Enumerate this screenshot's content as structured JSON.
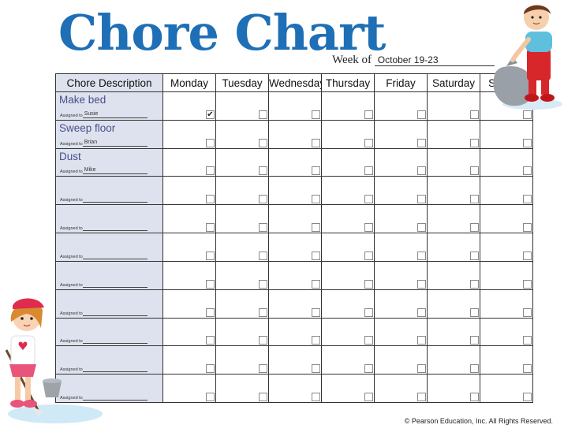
{
  "title": "Chore Chart",
  "week": {
    "label": "Week of",
    "value": "October 19-23"
  },
  "table": {
    "columns": [
      "Chore Description",
      "Monday",
      "Tuesday",
      "Wednesday",
      "Thursday",
      "Friday",
      "Saturday",
      "Sunday"
    ],
    "assigned_label": "Assigned to",
    "rows": [
      {
        "chore": "Make bed",
        "assigned": "Susie",
        "checks": [
          true,
          false,
          false,
          false,
          false,
          false,
          false
        ]
      },
      {
        "chore": "Sweep floor",
        "assigned": "Brian",
        "checks": [
          false,
          false,
          false,
          false,
          false,
          false,
          false
        ]
      },
      {
        "chore": "Dust",
        "assigned": "Mike",
        "checks": [
          false,
          false,
          false,
          false,
          false,
          false,
          false
        ]
      },
      {
        "chore": "",
        "assigned": "",
        "checks": [
          false,
          false,
          false,
          false,
          false,
          false,
          false
        ]
      },
      {
        "chore": "",
        "assigned": "",
        "checks": [
          false,
          false,
          false,
          false,
          false,
          false,
          false
        ]
      },
      {
        "chore": "",
        "assigned": "",
        "checks": [
          false,
          false,
          false,
          false,
          false,
          false,
          false
        ]
      },
      {
        "chore": "",
        "assigned": "",
        "checks": [
          false,
          false,
          false,
          false,
          false,
          false,
          false
        ]
      },
      {
        "chore": "",
        "assigned": "",
        "checks": [
          false,
          false,
          false,
          false,
          false,
          false,
          false
        ]
      },
      {
        "chore": "",
        "assigned": "",
        "checks": [
          false,
          false,
          false,
          false,
          false,
          false,
          false
        ]
      },
      {
        "chore": "",
        "assigned": "",
        "checks": [
          false,
          false,
          false,
          false,
          false,
          false,
          false
        ]
      },
      {
        "chore": "",
        "assigned": "",
        "checks": [
          false,
          false,
          false,
          false,
          false,
          false,
          false
        ]
      }
    ],
    "check_mark": "✔"
  },
  "footer": {
    "copyright": "© Pearson Education, Inc. All Rights Reserved."
  },
  "colors": {
    "title": "#1e6fb5",
    "desc_bg": "#dde2ee",
    "chore_text": "#4b4f8c"
  },
  "illustrations": [
    "boy-with-trash-bag-illustration",
    "girl-mopping-illustration"
  ]
}
